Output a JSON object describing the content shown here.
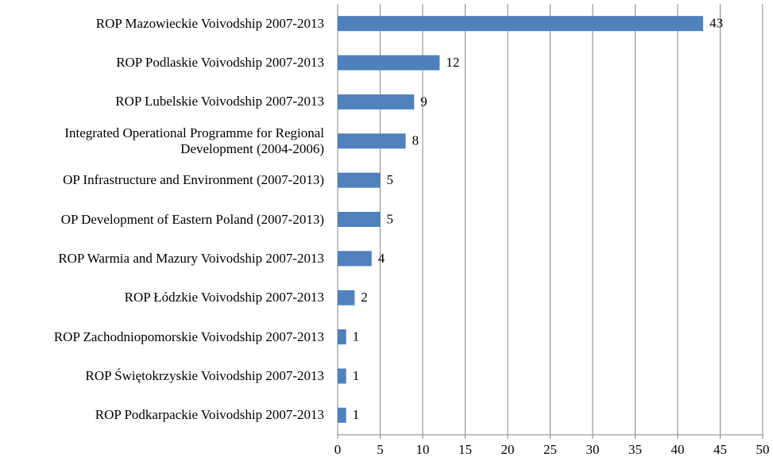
{
  "chart_data": {
    "type": "bar",
    "orientation": "horizontal",
    "categories": [
      "ROP Mazowieckie Voivodship 2007-2013",
      "ROP Podlaskie Voivodship 2007-2013",
      "ROP Lubelskie Voivodship 2007-2013",
      "Integrated Operational Programme for Regional Development  (2004-2006)",
      "OP Infrastructure and Environment (2007-2013)",
      "OP Development of Eastern Poland (2007-2013)",
      "ROP Warmia and Mazury Voivodship 2007-2013",
      "ROP Łódzkie Voivodship 2007-2013",
      "ROP Zachodniopomorskie Voivodship 2007-2013",
      "ROP Świętokrzyskie Voivodship 2007-2013",
      "ROP Podkarpackie Voivodship 2007-2013"
    ],
    "values": [
      43,
      12,
      9,
      8,
      5,
      5,
      4,
      2,
      1,
      1,
      1
    ],
    "color": "#4f81bd",
    "xlim": [
      0,
      50
    ],
    "xticks": [
      0,
      5,
      10,
      15,
      20,
      25,
      30,
      35,
      40,
      45,
      50
    ],
    "grid": true
  }
}
